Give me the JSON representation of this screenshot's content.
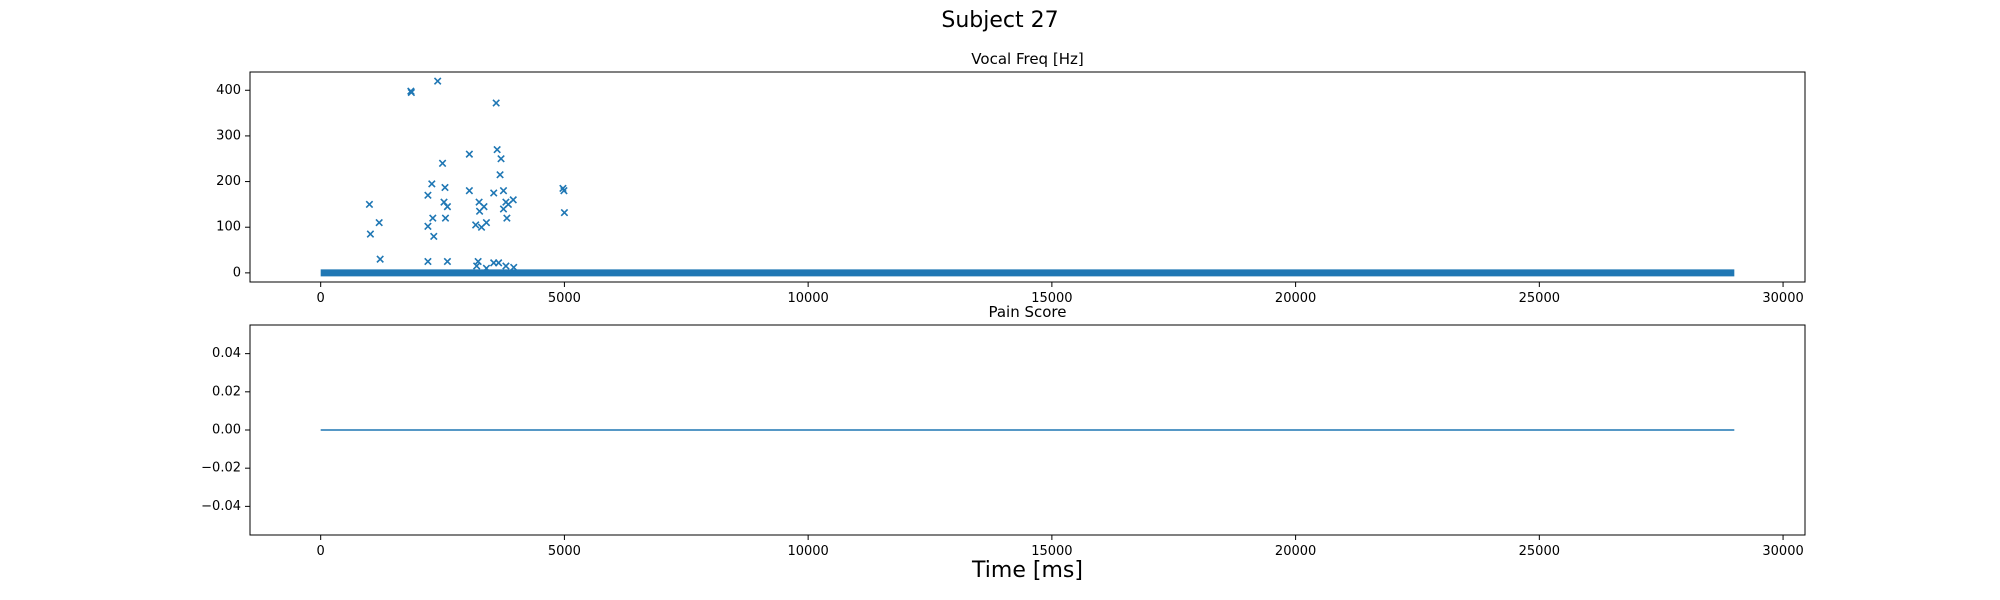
{
  "figure": {
    "suptitle": "Subject 27",
    "xlabel": "Time [ms]"
  },
  "colors": {
    "series": "#1f77b4",
    "axes": "#000000",
    "background": "#ffffff"
  },
  "chart_data": [
    {
      "type": "scatter",
      "title": "Vocal Freq [Hz]",
      "xlabel": "",
      "ylabel": "",
      "xlim": [
        -1450,
        30450
      ],
      "ylim": [
        -20,
        440
      ],
      "xticks": [
        0,
        5000,
        10000,
        15000,
        20000,
        25000,
        30000
      ],
      "yticks": [
        0,
        100,
        200,
        300,
        400
      ],
      "grid": false,
      "marker": "x",
      "baseline": {
        "x_from": 0,
        "x_to": 29000,
        "value": 0
      },
      "points": [
        [
          1000,
          150
        ],
        [
          1020,
          85
        ],
        [
          1200,
          110
        ],
        [
          1220,
          30
        ],
        [
          1850,
          398
        ],
        [
          1860,
          395
        ],
        [
          2200,
          170
        ],
        [
          2200,
          102
        ],
        [
          2200,
          25
        ],
        [
          2280,
          195
        ],
        [
          2300,
          120
        ],
        [
          2320,
          80
        ],
        [
          2400,
          420
        ],
        [
          2500,
          240
        ],
        [
          2530,
          155
        ],
        [
          2550,
          187
        ],
        [
          2560,
          120
        ],
        [
          2600,
          145
        ],
        [
          2600,
          25
        ],
        [
          3050,
          260
        ],
        [
          3050,
          180
        ],
        [
          3180,
          105
        ],
        [
          3200,
          15
        ],
        [
          3230,
          25
        ],
        [
          3250,
          155
        ],
        [
          3260,
          135
        ],
        [
          3300,
          100
        ],
        [
          3350,
          145
        ],
        [
          3400,
          110
        ],
        [
          3400,
          10
        ],
        [
          3550,
          175
        ],
        [
          3550,
          22
        ],
        [
          3600,
          372
        ],
        [
          3620,
          270
        ],
        [
          3650,
          22
        ],
        [
          3680,
          215
        ],
        [
          3700,
          250
        ],
        [
          3750,
          180
        ],
        [
          3750,
          140
        ],
        [
          3800,
          155
        ],
        [
          3800,
          15
        ],
        [
          3820,
          120
        ],
        [
          3850,
          150
        ],
        [
          3950,
          160
        ],
        [
          3960,
          12
        ],
        [
          4970,
          185
        ],
        [
          4990,
          180
        ],
        [
          5000,
          132
        ]
      ]
    },
    {
      "type": "line",
      "title": "Pain Score",
      "xlabel": "",
      "ylabel": "",
      "xlim": [
        -1450,
        30450
      ],
      "ylim": [
        -0.055,
        0.055
      ],
      "xticks": [
        0,
        5000,
        10000,
        15000,
        20000,
        25000,
        30000
      ],
      "yticks": [
        0.04,
        0.02,
        0.0,
        -0.02,
        -0.04
      ],
      "ytick_labels": [
        "0.04",
        "0.02",
        "0.00",
        "−0.02",
        "−0.04"
      ],
      "grid": false,
      "x": [
        0,
        29000
      ],
      "y": [
        0,
        0
      ]
    }
  ]
}
